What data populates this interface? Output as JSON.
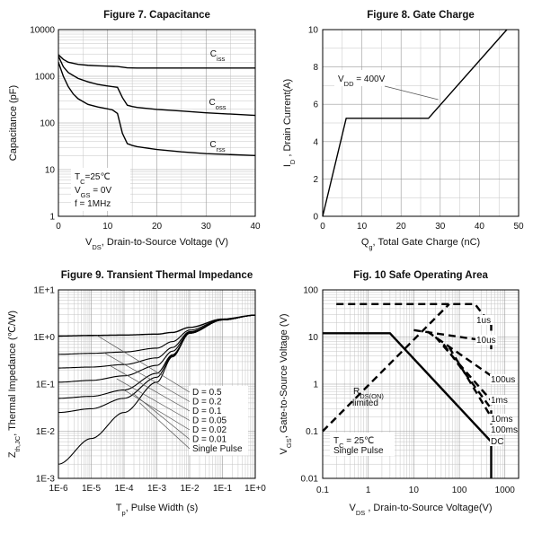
{
  "chart_data": [
    {
      "id": "fig7",
      "type": "line",
      "title": "Figure 7. Capacitance",
      "ylabel": "Capacitance (pF)",
      "xlabel_main": "V",
      "xlabel_sub": "DS",
      "xlabel_rest": ", Drain-to-Source Voltage (V)",
      "xlim": [
        0,
        40
      ],
      "ylim": [
        1,
        10000
      ],
      "yscale": "log",
      "xticks": [
        "0",
        "10",
        "20",
        "30",
        "40"
      ],
      "yticks": [
        "1",
        "10",
        "100",
        "1000",
        "10000"
      ],
      "grid": true,
      "conditions": [
        {
          "main": "T",
          "sub": "C",
          "rest": "=25℃"
        },
        {
          "main": "V",
          "sub": "GS",
          "rest": " = 0V"
        },
        {
          "main": "f = 1MHz",
          "sub": "",
          "rest": ""
        }
      ],
      "series": [
        {
          "name": "Ciss",
          "label_main": "C",
          "label_sub": "iss",
          "x": [
            0,
            1,
            2,
            4,
            6,
            8,
            10,
            12,
            14,
            16,
            20,
            25,
            30,
            35,
            40
          ],
          "y": [
            2900,
            2300,
            2000,
            1800,
            1720,
            1680,
            1650,
            1620,
            1520,
            1500,
            1500,
            1500,
            1500,
            1500,
            1500
          ]
        },
        {
          "name": "Coss",
          "label_main": "C",
          "label_sub": "oss",
          "x": [
            0,
            1,
            2,
            4,
            6,
            8,
            10,
            12,
            13,
            14,
            15,
            16,
            20,
            25,
            30,
            35,
            40
          ],
          "y": [
            2700,
            1600,
            1200,
            900,
            760,
            670,
            620,
            580,
            350,
            240,
            225,
            215,
            195,
            180,
            165,
            155,
            145
          ]
        },
        {
          "name": "Crss",
          "label_main": "C",
          "label_sub": "rss",
          "x": [
            0,
            1,
            2,
            3,
            4,
            6,
            8,
            10,
            11,
            12,
            13,
            14,
            15,
            16,
            20,
            25,
            30,
            35,
            40
          ],
          "y": [
            2000,
            1000,
            600,
            420,
            330,
            250,
            220,
            200,
            190,
            160,
            60,
            36,
            33,
            31,
            27,
            24,
            22,
            21,
            20
          ]
        }
      ]
    },
    {
      "id": "fig8",
      "type": "line",
      "title": "Figure 8. Gate Charge",
      "ylabel_main": "I",
      "ylabel_sub": "D",
      "ylabel_rest": " , Drain Current(A)",
      "xlabel_main": "Q",
      "xlabel_sub": "g",
      "xlabel_rest": ", Total Gate Charge (nC)",
      "xlim": [
        0,
        50
      ],
      "ylim": [
        0,
        10
      ],
      "xticks": [
        "0",
        "10",
        "20",
        "30",
        "40",
        "50"
      ],
      "yticks": [
        "0",
        "2",
        "4",
        "6",
        "8",
        "10"
      ],
      "grid": true,
      "annotation": {
        "main": "V",
        "sub": "DD",
        "rest": " = 400V"
      },
      "series": [
        {
          "name": "VDD = 400V",
          "x": [
            0,
            6,
            27,
            47
          ],
          "y": [
            0,
            5.25,
            5.25,
            10
          ]
        }
      ]
    },
    {
      "id": "fig9",
      "type": "line",
      "title": "Figure 9. Transient Thermal Impedance",
      "ylabel_main": "Z",
      "ylabel_sub": "th,JC",
      "ylabel_rest": ", Thermal Impedance (℃/W)",
      "xlabel_main": "T",
      "xlabel_sub": "p",
      "xlabel_rest": ", Pulse Width (s)",
      "xscale": "log",
      "yscale": "log",
      "xlim": [
        1e-06,
        1
      ],
      "ylim": [
        0.001,
        10
      ],
      "xticks": [
        "1E-6",
        "1E-5",
        "1E-4",
        "1E-3",
        "1E-2",
        "1E-1",
        "1E+0"
      ],
      "yticks": [
        "1E-3",
        "1E-2",
        "1E-1",
        "1E+0",
        "1E+1"
      ],
      "grid": true,
      "legend": [
        "D = 0.5",
        "D = 0.2",
        "D = 0.1",
        "D = 0.05",
        "D = 0.02",
        "D = 0.01",
        "Single Pulse"
      ],
      "series": [
        {
          "name": "D = 0.5",
          "x": [
            1e-06,
            1e-05,
            0.0001,
            0.001,
            0.003,
            0.01,
            0.1,
            1
          ],
          "y": [
            1.05,
            1.08,
            1.1,
            1.15,
            1.25,
            1.6,
            2.4,
            2.9
          ]
        },
        {
          "name": "D = 0.2",
          "x": [
            1e-06,
            1e-05,
            0.0001,
            0.001,
            0.003,
            0.01,
            0.1,
            1
          ],
          "y": [
            0.43,
            0.45,
            0.48,
            0.58,
            0.8,
            1.4,
            2.35,
            2.9
          ]
        },
        {
          "name": "D = 0.1",
          "x": [
            1e-06,
            1e-05,
            0.0001,
            0.001,
            0.003,
            0.01,
            0.1,
            1
          ],
          "y": [
            0.22,
            0.23,
            0.26,
            0.36,
            0.6,
            1.3,
            2.3,
            2.9
          ]
        },
        {
          "name": "D = 0.05",
          "x": [
            1e-06,
            1e-05,
            0.0001,
            0.001,
            0.003,
            0.01,
            0.1,
            1
          ],
          "y": [
            0.11,
            0.12,
            0.15,
            0.25,
            0.5,
            1.25,
            2.3,
            2.9
          ]
        },
        {
          "name": "D = 0.02",
          "x": [
            1e-06,
            1e-05,
            0.0001,
            0.001,
            0.003,
            0.01,
            0.1,
            1
          ],
          "y": [
            0.05,
            0.055,
            0.075,
            0.17,
            0.42,
            1.2,
            2.3,
            2.9
          ]
        },
        {
          "name": "D = 0.01",
          "x": [
            1e-06,
            1e-05,
            0.0001,
            0.001,
            0.003,
            0.01,
            0.1,
            1
          ],
          "y": [
            0.025,
            0.03,
            0.05,
            0.14,
            0.4,
            1.2,
            2.3,
            2.9
          ]
        },
        {
          "name": "Single Pulse",
          "x": [
            1e-06,
            1e-05,
            0.0001,
            0.001,
            0.003,
            0.01,
            0.1,
            1
          ],
          "y": [
            0.002,
            0.007,
            0.025,
            0.11,
            0.38,
            1.2,
            2.3,
            2.9
          ]
        }
      ]
    },
    {
      "id": "fig10",
      "type": "line",
      "title": "Fig. 10 Safe Operating Area",
      "ylabel_main": "V",
      "ylabel_sub": "GS",
      "ylabel_rest": ", Gate-to-Source Voltage (V)",
      "xlabel_main": "V",
      "xlabel_sub": "DS",
      "xlabel_rest": " , Drain-to-Source Voltage(V)",
      "xscale": "log",
      "yscale": "log",
      "xlim": [
        0.1,
        2000
      ],
      "ylim": [
        0.01,
        100
      ],
      "xticks": [
        "0.1",
        "1",
        "10",
        "100",
        "1000"
      ],
      "yticks": [
        "0.01",
        "0.1",
        "1",
        "10",
        "100"
      ],
      "grid": true,
      "region_label": {
        "main": "R",
        "sub": "DS(ON)",
        "line2": "limited"
      },
      "conditions": [
        {
          "main": "T",
          "sub": "C",
          "rest": " = 25℃"
        },
        {
          "main": "Single Pulse",
          "sub": "",
          "rest": ""
        }
      ],
      "series": [
        {
          "name": "DC",
          "style": "solid",
          "x": [
            0.1,
            3,
            500,
            500
          ],
          "y": [
            12,
            12,
            0.06,
            0.01
          ]
        },
        {
          "name": "RDS(ON) limited",
          "style": "dashed",
          "x": [
            0.1,
            60
          ],
          "y": [
            0.1,
            50
          ]
        },
        {
          "name": "1us",
          "style": "dashed",
          "x": [
            0.2,
            220,
            500,
            500
          ],
          "y": [
            50,
            50,
            18,
            13
          ]
        },
        {
          "name": "10us",
          "style": "dashed",
          "x": [
            10,
            500,
            500
          ],
          "y": [
            14,
            8,
            5.5
          ]
        },
        {
          "name": "100us",
          "style": "dashed",
          "x": [
            20,
            500,
            500
          ],
          "y": [
            13,
            1.5,
            1.0
          ]
        },
        {
          "name": "1ms",
          "style": "dashed",
          "x": [
            30,
            500,
            500
          ],
          "y": [
            10,
            0.45,
            0.3
          ]
        },
        {
          "name": "10ms",
          "style": "dashed",
          "x": [
            45,
            500,
            500
          ],
          "y": [
            7,
            0.3,
            0.2
          ]
        },
        {
          "name": "100ms",
          "style": "dashed",
          "x": [
            60,
            500,
            500
          ],
          "y": [
            6,
            0.2,
            0.13
          ]
        }
      ],
      "curve_labels": [
        "1us",
        "10us",
        "100us",
        "1ms",
        "10ms",
        "100ms",
        "DC"
      ]
    }
  ]
}
